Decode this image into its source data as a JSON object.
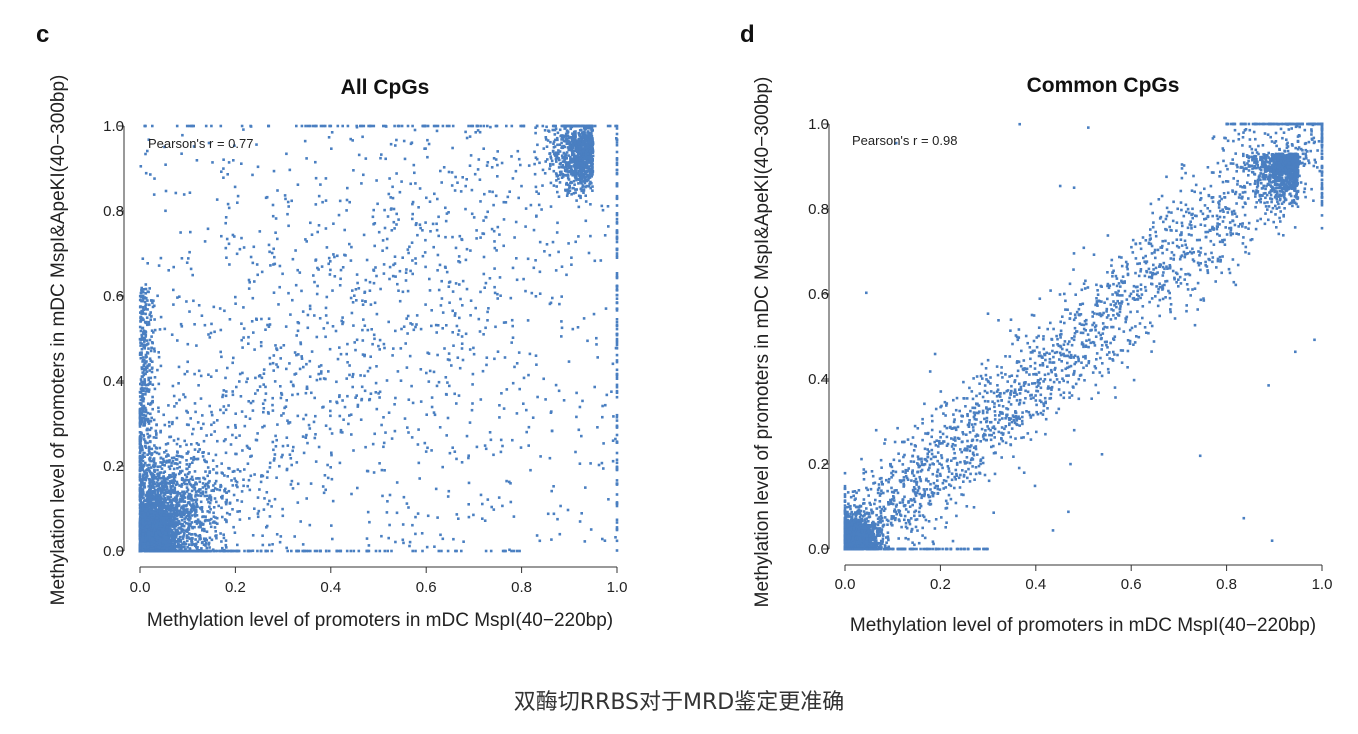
{
  "caption": "双酶切RRBS对于MRD鉴定更准确",
  "colors": {
    "points": "#4a7fc1",
    "axis": "#333333",
    "text": "#222222"
  },
  "chart_data": [
    {
      "panel": "c",
      "type": "scatter",
      "title": "All CpGs",
      "xlabel": "Methylation level of promoters in mDC MspI(40−220bp)",
      "ylabel": "Methylation level of promoters in mDC MspI&ApeKI(40−300bp)",
      "xlim": [
        0,
        1
      ],
      "ylim": [
        0,
        1
      ],
      "xticks": [
        "0.0",
        "0.2",
        "0.4",
        "0.6",
        "0.8",
        "1.0"
      ],
      "yticks": [
        "0.0",
        "0.2",
        "0.4",
        "0.6",
        "0.8",
        "1.0"
      ],
      "annotation": "Pearson's r = 0.77",
      "pearson_r": 0.77,
      "grid": false,
      "point_clusters": [
        {
          "center": [
            0.03,
            0.05
          ],
          "spread": [
            0.04,
            0.05
          ],
          "density": "very high"
        },
        {
          "center": [
            0.1,
            0.18
          ],
          "spread": [
            0.07,
            0.1
          ],
          "density": "high"
        },
        {
          "center": [
            0.93,
            0.92
          ],
          "spread": [
            0.04,
            0.05
          ],
          "density": "high"
        },
        {
          "center": [
            0.45,
            0.45
          ],
          "spread": [
            0.3,
            0.28
          ],
          "density": "low"
        }
      ]
    },
    {
      "panel": "d",
      "type": "scatter",
      "title": "Common CpGs",
      "xlabel": "Methylation level of promoters in mDC MspI(40−220bp)",
      "ylabel": "Methylation level of promoters in mDC MspI&ApeKI(40−300bp)",
      "xlim": [
        0,
        1
      ],
      "ylim": [
        0,
        1
      ],
      "xticks": [
        "0.0",
        "0.2",
        "0.4",
        "0.6",
        "0.8",
        "1.0"
      ],
      "yticks": [
        "0.0",
        "0.2",
        "0.4",
        "0.6",
        "0.8",
        "1.0"
      ],
      "annotation": "Pearson's r = 0.98",
      "pearson_r": 0.98,
      "grid": false,
      "point_clusters": [
        {
          "center": [
            0.03,
            0.03
          ],
          "spread": [
            0.03,
            0.03
          ],
          "density": "very high"
        },
        {
          "center": [
            0.93,
            0.93
          ],
          "spread": [
            0.04,
            0.04
          ],
          "density": "high"
        },
        {
          "center": [
            0.5,
            0.5
          ],
          "spread": [
            0.28,
            0.06
          ],
          "density": "medium",
          "along": "diagonal"
        }
      ]
    }
  ]
}
